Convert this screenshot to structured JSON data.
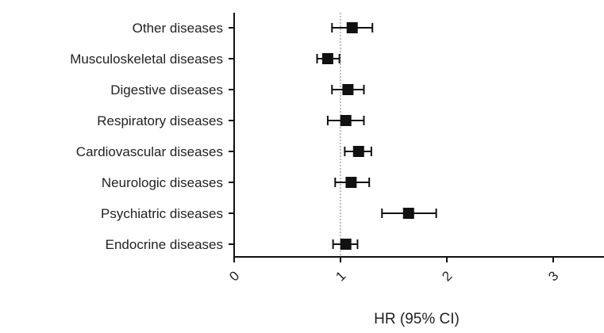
{
  "chart_data": {
    "type": "scatter",
    "subtype": "forest-plot",
    "title": "",
    "xlabel": "HR (95% CI)",
    "ylabel": "",
    "xlim": [
      0,
      3.5
    ],
    "xticks": [
      "0",
      "1",
      "2",
      "3"
    ],
    "xtick_values": [
      0,
      1,
      2,
      3
    ],
    "reference_line": 1,
    "grid": false,
    "legend": "none",
    "marker_color": "#111111",
    "reference_line_color": "#9a9a9a",
    "categories": [
      "Other diseases",
      "Musculoskeletal diseases",
      "Digestive diseases",
      "Respiratory diseases",
      "Cardiovascular diseases",
      "Neurologic diseases",
      "Psychiatric diseases",
      "Endocrine diseases"
    ],
    "hr": [
      1.11,
      0.88,
      1.07,
      1.05,
      1.17,
      1.1,
      1.64,
      1.05
    ],
    "lower": [
      0.92,
      0.78,
      0.92,
      0.88,
      1.04,
      0.95,
      1.39,
      0.93
    ],
    "upper": [
      1.3,
      0.99,
      1.22,
      1.22,
      1.29,
      1.27,
      1.9,
      1.16
    ]
  }
}
